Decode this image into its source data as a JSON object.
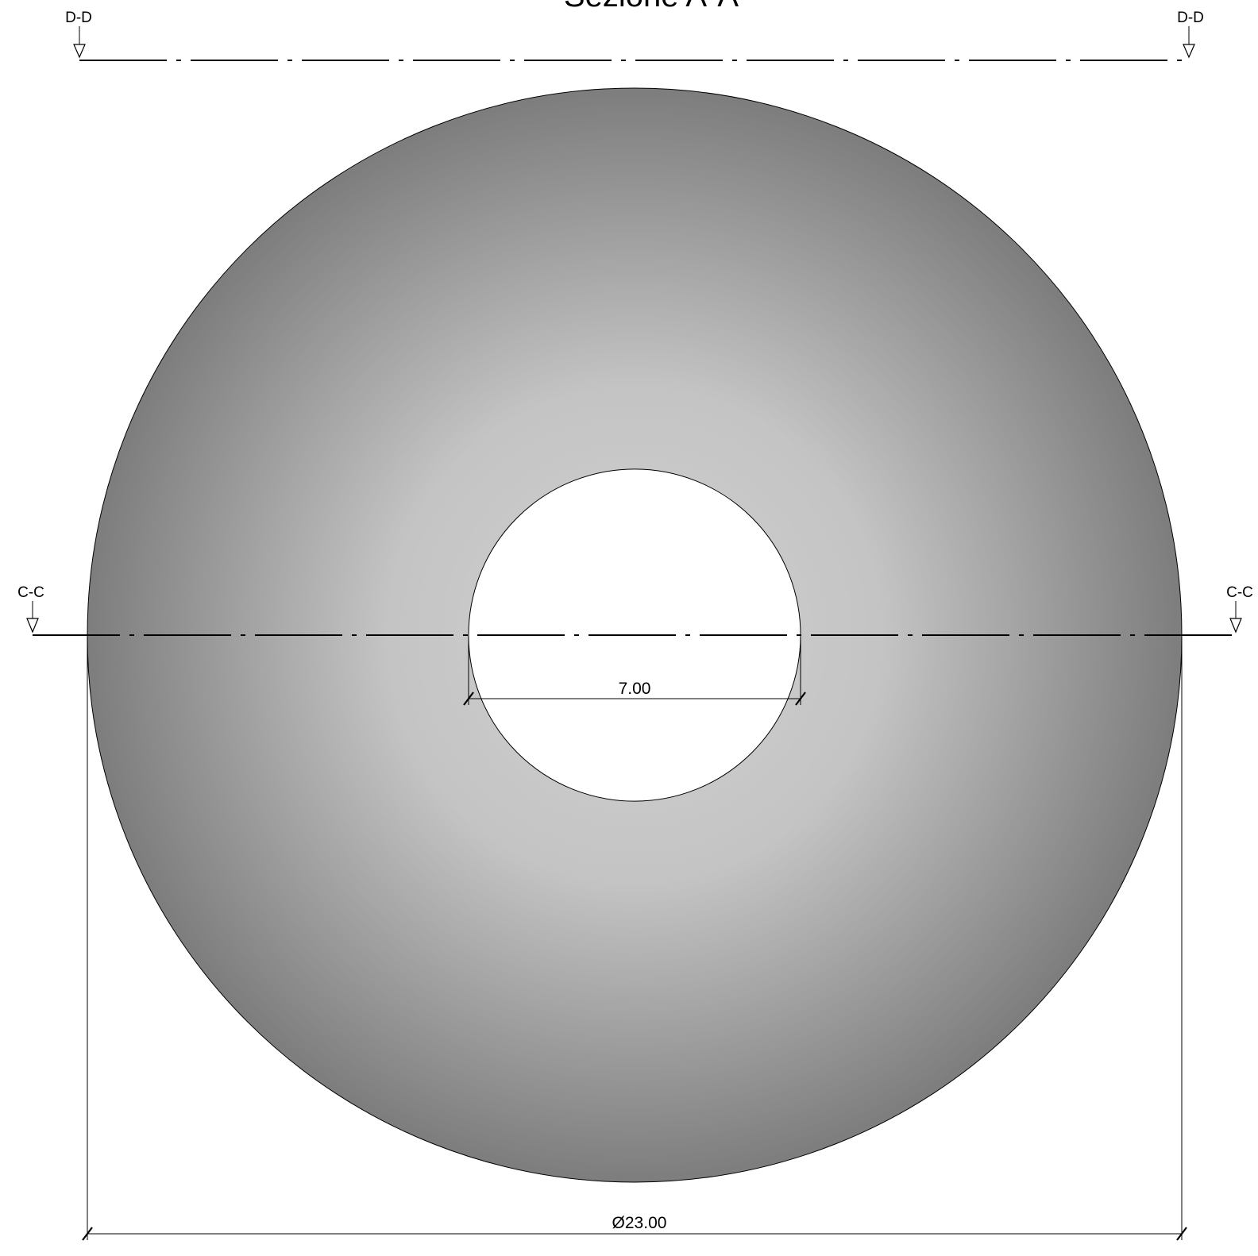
{
  "title": "Sezione A-A",
  "section_labels": {
    "top_left": "D-D",
    "top_right": "D-D",
    "mid_left": "C-C",
    "mid_right": "C-C"
  },
  "dimensions": {
    "inner": "7.00",
    "outer": "Ø23.00"
  },
  "colors": {
    "fill_center": "#cccccc",
    "fill_edge": "#7f7f7f",
    "line": "#000000",
    "background": "#ffffff"
  }
}
